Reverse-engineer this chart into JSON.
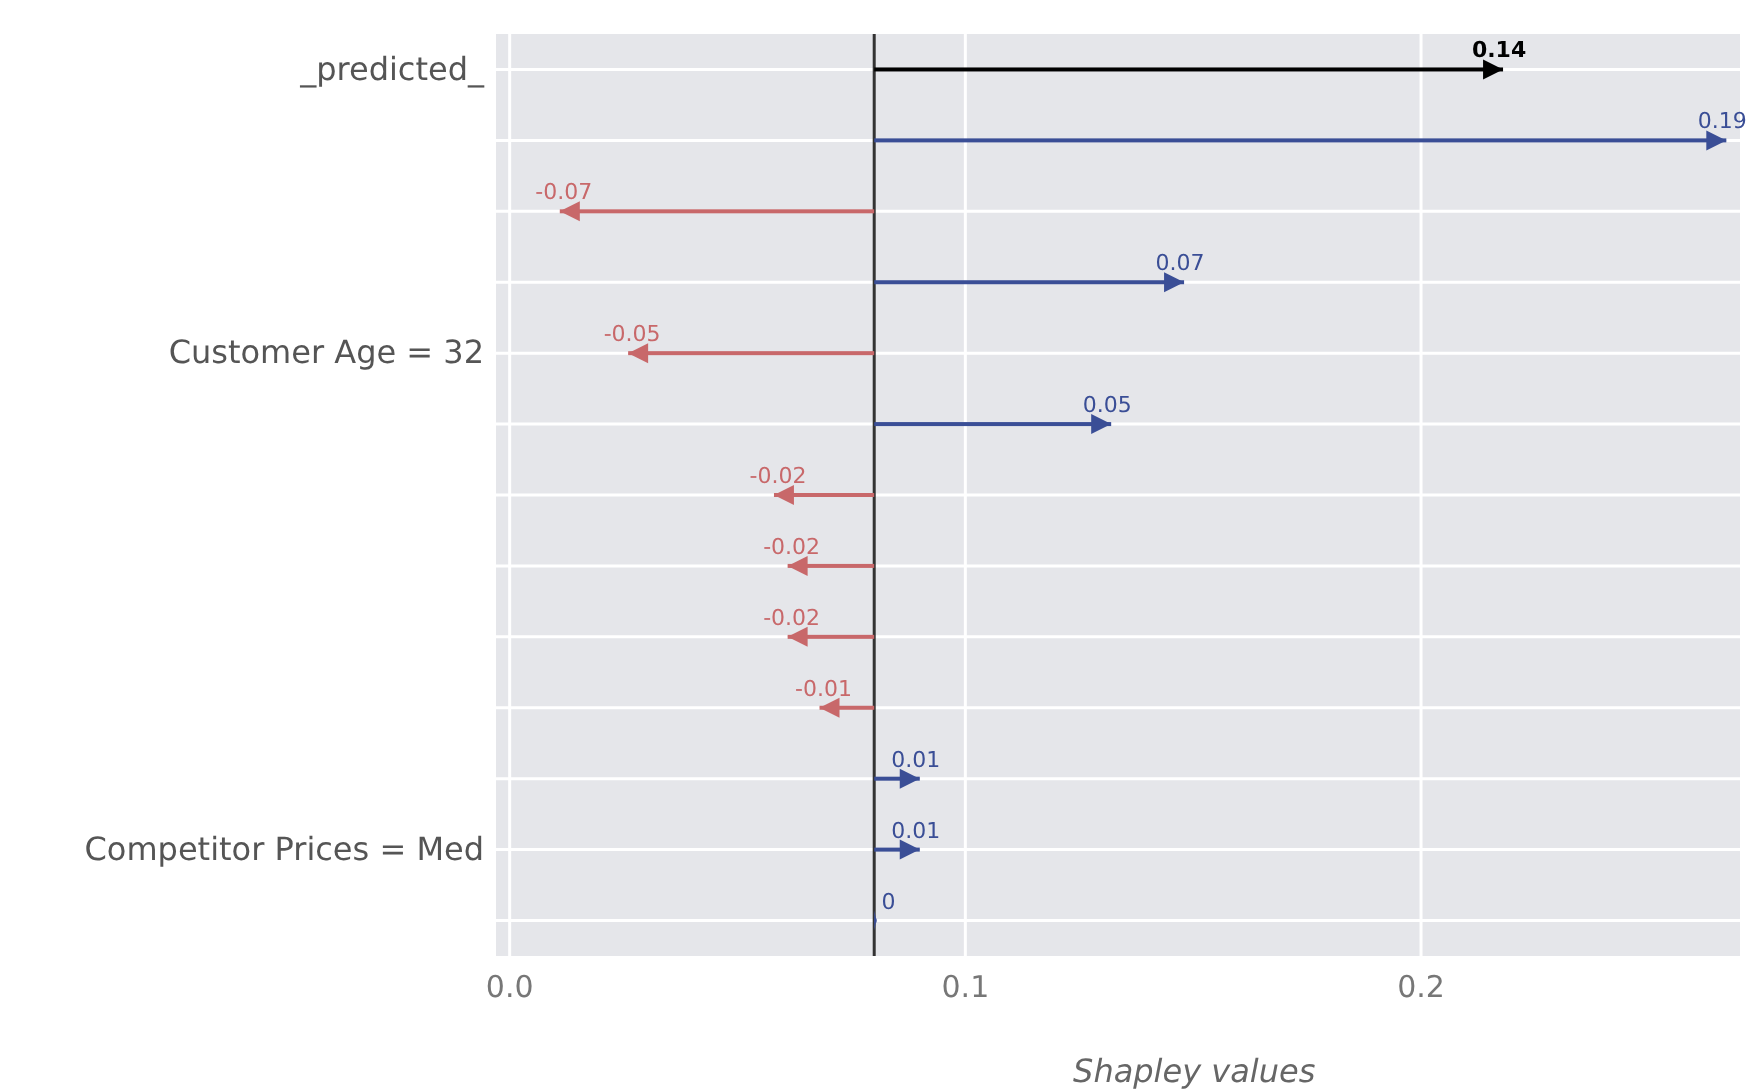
{
  "chart_data": {
    "type": "bar",
    "orientation": "horizontal",
    "xlabel": "Shapley values",
    "categories": [
      "_predicted_",
      null,
      null,
      null,
      "Customer Age = 32",
      null,
      null,
      null,
      null,
      null,
      null,
      "Competitor Prices = Med",
      null
    ],
    "values": [
      0.138,
      0.187,
      -0.069,
      0.068,
      -0.054,
      0.052,
      -0.022,
      -0.019,
      -0.019,
      -0.012,
      0.01,
      0.01,
      0.0005
    ],
    "base": [
      0.08,
      0.08,
      0.08,
      0.08,
      0.08,
      0.08,
      0.08,
      0.08,
      0.08,
      0.08,
      0.08,
      0.08,
      0.08
    ],
    "colors": [
      "#000000",
      "#3a4e96",
      "#c8686a",
      "#3a4e96",
      "#c8686a",
      "#3a4e96",
      "#c8686a",
      "#c8686a",
      "#c8686a",
      "#c8686a",
      "#3a4e96",
      "#3a4e96",
      "#3a4e96"
    ],
    "value_labels": [
      "0.14",
      "0.19",
      "-0.07",
      "0.07",
      "-0.05",
      "0.05",
      "-0.02",
      "-0.02",
      "-0.02",
      "-0.01",
      "0.01",
      "0.01",
      "0"
    ],
    "xlim": [
      -0.003,
      0.27
    ],
    "xticks": [
      {
        "value": 0,
        "label": "0.0"
      },
      {
        "value": 0.1,
        "label": "0.1"
      },
      {
        "value": 0.2,
        "label": "0.2"
      }
    ],
    "ref_lines": [
      {
        "axis": "x",
        "value": 0.08,
        "color": "#333333"
      }
    ],
    "grid": true
  }
}
